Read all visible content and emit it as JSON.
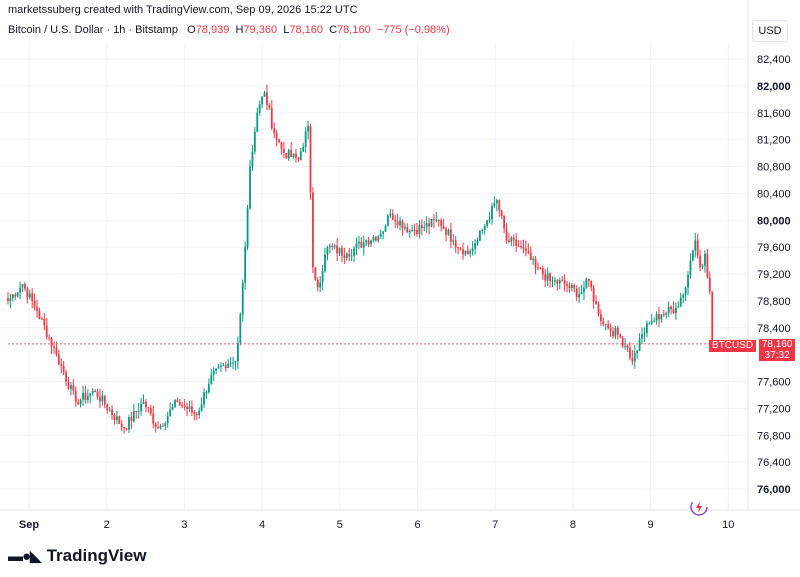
{
  "header": {
    "created_line": "marketssuberg created with TradingView.com, Sep 09, 2026 15:22 UTC"
  },
  "symbol": {
    "name": "Bitcoin / U.S. Dollar · 1h · Bitstamp",
    "o_label": "O",
    "o_value": "78,939",
    "h_label": "H",
    "h_value": "79,360",
    "l_label": "L",
    "l_value": "78,160",
    "c_label": "C",
    "c_value": "78,160",
    "change": "−775 (−0.98%)"
  },
  "currency": "USD",
  "price_tag": {
    "symbol": "BTCUSD",
    "price": "78,160",
    "countdown": "37:32"
  },
  "footer": {
    "brand": "TradingView",
    "logo_icon": "tradingview-logo-icon"
  },
  "colors": {
    "up": "#089981",
    "down": "#f23645",
    "grid": "#f0f3fa",
    "axis_text": "#131722"
  },
  "chart_data": {
    "type": "candlestick",
    "title": "Bitcoin / U.S. Dollar · 1h · Bitstamp",
    "ylim": [
      75800,
      82700
    ],
    "y_ticks": [
      {
        "value": 82400,
        "label": "82,400"
      },
      {
        "value": 82000,
        "label": "82,000"
      },
      {
        "value": 81600,
        "label": "81,600"
      },
      {
        "value": 81200,
        "label": "81,200"
      },
      {
        "value": 80800,
        "label": "80,800"
      },
      {
        "value": 80400,
        "label": "80,400"
      },
      {
        "value": 80000,
        "label": "80,000"
      },
      {
        "value": 79600,
        "label": "79,600"
      },
      {
        "value": 79200,
        "label": "79,200"
      },
      {
        "value": 78800,
        "label": "78,800"
      },
      {
        "value": 78400,
        "label": "78,400"
      },
      {
        "value": 77600,
        "label": "77,600"
      },
      {
        "value": 77200,
        "label": "77,200"
      },
      {
        "value": 76800,
        "label": "76,800"
      },
      {
        "value": 76400,
        "label": "76,400"
      },
      {
        "value": 76000,
        "label": "76,000"
      }
    ],
    "bold_ticks": [
      "82,000",
      "80,000",
      "76,000"
    ],
    "x_ticks": [
      {
        "day": 1,
        "label": "Sep"
      },
      {
        "day": 2,
        "label": "2"
      },
      {
        "day": 3,
        "label": "3"
      },
      {
        "day": 4,
        "label": "4"
      },
      {
        "day": 5,
        "label": "5"
      },
      {
        "day": 6,
        "label": "6"
      },
      {
        "day": 7,
        "label": "7"
      },
      {
        "day": 8,
        "label": "8"
      },
      {
        "day": 9,
        "label": "9"
      },
      {
        "day": 10,
        "label": "10"
      }
    ],
    "last_price": 78160,
    "keypoints": [
      [
        0,
        78800
      ],
      [
        6,
        79050
      ],
      [
        12,
        78650
      ],
      [
        20,
        78000
      ],
      [
        28,
        77300
      ],
      [
        36,
        77450
      ],
      [
        48,
        76900
      ],
      [
        56,
        77300
      ],
      [
        62,
        76900
      ],
      [
        70,
        77300
      ],
      [
        78,
        77100
      ],
      [
        84,
        77700
      ],
      [
        90,
        77800
      ],
      [
        94,
        77900
      ],
      [
        96,
        78600
      ],
      [
        98,
        79600
      ],
      [
        100,
        80800
      ],
      [
        103,
        81600
      ],
      [
        106,
        81900
      ],
      [
        110,
        81300
      ],
      [
        114,
        81000
      ],
      [
        120,
        80900
      ],
      [
        124,
        81400
      ],
      [
        126,
        79300
      ],
      [
        128,
        79000
      ],
      [
        132,
        79600
      ],
      [
        140,
        79500
      ],
      [
        148,
        79700
      ],
      [
        154,
        79800
      ],
      [
        158,
        80100
      ],
      [
        166,
        79850
      ],
      [
        172,
        79900
      ],
      [
        178,
        80000
      ],
      [
        184,
        79700
      ],
      [
        190,
        79500
      ],
      [
        194,
        79700
      ],
      [
        198,
        80000
      ],
      [
        202,
        80300
      ],
      [
        206,
        79700
      ],
      [
        212,
        79600
      ],
      [
        218,
        79300
      ],
      [
        224,
        79100
      ],
      [
        230,
        79050
      ],
      [
        236,
        78900
      ],
      [
        240,
        79100
      ],
      [
        244,
        78600
      ],
      [
        248,
        78400
      ],
      [
        252,
        78300
      ],
      [
        256,
        78100
      ],
      [
        258,
        77900
      ],
      [
        262,
        78300
      ],
      [
        266,
        78500
      ],
      [
        270,
        78600
      ],
      [
        276,
        78700
      ],
      [
        280,
        79000
      ],
      [
        282,
        79400
      ],
      [
        284,
        79700
      ],
      [
        286,
        79300
      ],
      [
        288,
        79500
      ],
      [
        290,
        78939
      ],
      [
        291,
        78160
      ]
    ]
  }
}
